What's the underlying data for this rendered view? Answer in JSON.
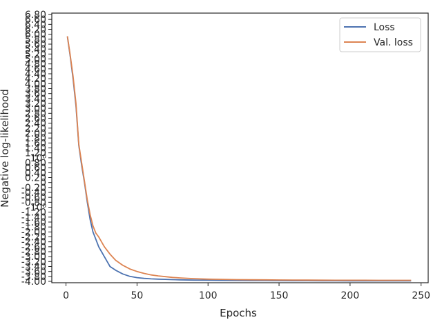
{
  "chart_data": {
    "type": "line",
    "title": "",
    "xlabel": "Epochs",
    "ylabel": "Negative log-likelihood",
    "xlim": [
      -10,
      255
    ],
    "xticks": [
      0,
      50,
      100,
      150,
      200,
      250
    ],
    "xtick_labels": [
      "0",
      "50",
      "100",
      "150",
      "200",
      "250"
    ],
    "ylim": [
      -4.0,
      6.0
    ],
    "ytick_labels": [
      "6.80",
      "6.60",
      "6.40",
      "6.20",
      "6.00",
      "5.80",
      "5.60",
      "5.40",
      "5.20",
      "5.00",
      "4.80",
      "4.60",
      "4.40",
      "4.20",
      "4.00",
      "3.80",
      "3.60",
      "3.40",
      "3.20",
      "3.00",
      "2.80",
      "2.60",
      "2.40",
      "2.20",
      "2.00",
      "1.80",
      "1.60",
      "1.40",
      "1.20",
      "10⁰",
      "0.80",
      "0.60",
      "0.40",
      "0.20",
      "0",
      "-0.20",
      "-0.40",
      "-0.60",
      "-0.80",
      "-10⁰",
      "-1.20",
      "-1.40",
      "-1.60",
      "-1.80",
      "-2.00",
      "-2.20",
      "-2.40",
      "-2.60",
      "-2.80",
      "-3.00",
      "-3.20",
      "-3.40",
      "-3.60",
      "-3.80",
      "-4.00"
    ],
    "grid": false,
    "legend_position": "top-right",
    "series": [
      {
        "name": "Loss",
        "color": "#4c72b0",
        "x": [
          1,
          3,
          5,
          7,
          9,
          11,
          13,
          15,
          17,
          19,
          21,
          23,
          25,
          27,
          29,
          31,
          35,
          40,
          45,
          50,
          55,
          60,
          65,
          70,
          75,
          80,
          90,
          100,
          110,
          120,
          130,
          140,
          150,
          160,
          170,
          180,
          190,
          200,
          210,
          220,
          230,
          243
        ],
        "y": [
          5.9,
          5.1,
          4.2,
          3.1,
          1.5,
          0.7,
          0.0,
          -0.8,
          -1.5,
          -2.0,
          -2.3,
          -2.6,
          -2.8,
          -3.0,
          -3.2,
          -3.4,
          -3.55,
          -3.7,
          -3.8,
          -3.85,
          -3.88,
          -3.9,
          -3.91,
          -3.92,
          -3.93,
          -3.94,
          -3.95,
          -3.955,
          -3.96,
          -3.965,
          -3.968,
          -3.97,
          -3.972,
          -3.974,
          -3.976,
          -3.978,
          -3.979,
          -3.98,
          -3.981,
          -3.982,
          -3.983,
          -3.984
        ]
      },
      {
        "name": "Val. loss",
        "color": "#dd8452",
        "x": [
          1,
          3,
          5,
          7,
          9,
          11,
          13,
          15,
          17,
          19,
          21,
          23,
          25,
          27,
          29,
          31,
          35,
          40,
          45,
          50,
          55,
          60,
          65,
          70,
          75,
          80,
          90,
          100,
          110,
          120,
          130,
          140,
          150,
          160,
          170,
          180,
          190,
          200,
          210,
          220,
          230,
          243
        ],
        "y": [
          5.92,
          5.15,
          4.3,
          3.2,
          1.55,
          0.8,
          0.05,
          -0.7,
          -1.3,
          -1.75,
          -2.05,
          -2.2,
          -2.4,
          -2.6,
          -2.75,
          -2.9,
          -3.15,
          -3.35,
          -3.5,
          -3.6,
          -3.68,
          -3.74,
          -3.78,
          -3.81,
          -3.84,
          -3.86,
          -3.89,
          -3.91,
          -3.92,
          -3.93,
          -3.935,
          -3.94,
          -3.945,
          -3.948,
          -3.95,
          -3.952,
          -3.954,
          -3.955,
          -3.956,
          -3.957,
          -3.958,
          -3.959
        ]
      }
    ]
  }
}
